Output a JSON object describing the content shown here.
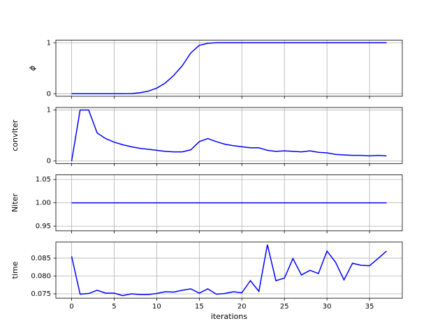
{
  "chart_data": [
    {
      "type": "line",
      "ylabel": "ϕ",
      "x": [
        0,
        1,
        2,
        3,
        4,
        5,
        6,
        7,
        8,
        9,
        10,
        11,
        12,
        13,
        14,
        15,
        16,
        17,
        18,
        19,
        20,
        21,
        22,
        23,
        24,
        25,
        26,
        27,
        28,
        29,
        30,
        31,
        32,
        33,
        34,
        35,
        36,
        37
      ],
      "values": [
        0,
        0,
        0,
        0,
        0,
        0,
        0,
        0.003,
        0.02,
        0.05,
        0.11,
        0.21,
        0.36,
        0.55,
        0.8,
        0.95,
        0.99,
        1,
        1,
        1,
        1,
        1,
        1,
        1,
        1,
        1,
        1,
        1,
        1,
        1,
        1,
        1,
        1,
        1,
        1,
        1,
        1,
        1
      ],
      "color": "#0000ff",
      "xlim": [
        -1.85,
        38.85
      ],
      "xticks": [
        0,
        5,
        10,
        15,
        20,
        25,
        30,
        35
      ],
      "ylim": [
        -0.05,
        1.05
      ],
      "yticks": [
        0,
        1
      ],
      "grid": true
    },
    {
      "type": "line",
      "ylabel": "convIter",
      "x": [
        0,
        1,
        2,
        3,
        4,
        5,
        6,
        7,
        8,
        9,
        10,
        11,
        12,
        13,
        14,
        15,
        16,
        17,
        18,
        19,
        20,
        21,
        22,
        23,
        24,
        25,
        26,
        27,
        28,
        29,
        30,
        31,
        32,
        33,
        34,
        35,
        36,
        37
      ],
      "values": [
        0,
        1,
        1,
        0.55,
        0.44,
        0.37,
        0.32,
        0.28,
        0.25,
        0.23,
        0.21,
        0.19,
        0.18,
        0.18,
        0.22,
        0.38,
        0.44,
        0.38,
        0.33,
        0.3,
        0.28,
        0.26,
        0.26,
        0.21,
        0.19,
        0.2,
        0.19,
        0.18,
        0.2,
        0.17,
        0.16,
        0.13,
        0.12,
        0.11,
        0.11,
        0.1,
        0.11,
        0.1
      ],
      "color": "#0000ff",
      "xlim": [
        -1.85,
        38.85
      ],
      "xticks": [
        0,
        5,
        10,
        15,
        20,
        25,
        30,
        35
      ],
      "ylim": [
        -0.05,
        1.05
      ],
      "yticks": [
        0,
        1
      ],
      "grid": true
    },
    {
      "type": "line",
      "ylabel": "Niter",
      "x": [
        0,
        1,
        2,
        3,
        4,
        5,
        6,
        7,
        8,
        9,
        10,
        11,
        12,
        13,
        14,
        15,
        16,
        17,
        18,
        19,
        20,
        21,
        22,
        23,
        24,
        25,
        26,
        27,
        28,
        29,
        30,
        31,
        32,
        33,
        34,
        35,
        36,
        37
      ],
      "values": [
        1,
        1,
        1,
        1,
        1,
        1,
        1,
        1,
        1,
        1,
        1,
        1,
        1,
        1,
        1,
        1,
        1,
        1,
        1,
        1,
        1,
        1,
        1,
        1,
        1,
        1,
        1,
        1,
        1,
        1,
        1,
        1,
        1,
        1,
        1,
        1,
        1,
        1
      ],
      "color": "#0000ff",
      "xlim": [
        -1.85,
        38.85
      ],
      "xticks": [
        0,
        5,
        10,
        15,
        20,
        25,
        30,
        35
      ],
      "ylim": [
        0.94,
        1.06
      ],
      "yticks": [
        {
          "value": 0.95,
          "label": "0.95"
        },
        {
          "value": 1,
          "label": "1.00"
        },
        {
          "value": 1.05,
          "label": "1.05"
        }
      ],
      "grid": true
    },
    {
      "type": "line",
      "ylabel": "time",
      "xlabel": "iterations",
      "x": [
        0,
        1,
        2,
        3,
        4,
        5,
        6,
        7,
        8,
        9,
        10,
        11,
        12,
        13,
        14,
        15,
        16,
        17,
        18,
        19,
        20,
        21,
        22,
        23,
        24,
        25,
        26,
        27,
        28,
        29,
        30,
        31,
        32,
        33,
        34,
        35,
        36,
        37
      ],
      "values": [
        0.0855,
        0.0749,
        0.0751,
        0.076,
        0.0752,
        0.0752,
        0.0745,
        0.075,
        0.0748,
        0.0748,
        0.0751,
        0.0756,
        0.0755,
        0.076,
        0.0764,
        0.0752,
        0.0764,
        0.0749,
        0.0751,
        0.0756,
        0.0753,
        0.0787,
        0.0757,
        0.0888,
        0.0787,
        0.0794,
        0.0849,
        0.0803,
        0.0816,
        0.0807,
        0.087,
        0.0839,
        0.0789,
        0.0836,
        0.083,
        0.0829,
        0.0849,
        0.087
      ],
      "color": "#0000ff",
      "xlim": [
        -1.85,
        38.85
      ],
      "xticks": [
        0,
        5,
        10,
        15,
        20,
        25,
        30,
        35
      ],
      "ylim": [
        0.07379,
        0.08952
      ],
      "yticks": [
        0.075,
        {
          "value": 0.08,
          "label": "0.080"
        },
        0.085
      ],
      "grid": true
    }
  ]
}
